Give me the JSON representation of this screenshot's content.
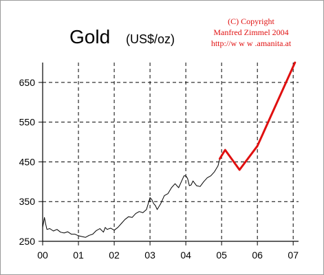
{
  "chart_data": {
    "type": "line",
    "title": "Gold",
    "subtitle": "(US$/oz)",
    "copyright": [
      "(C) Copyright",
      "Manfred Zimmel 2004",
      "http://w w w .amanita.at"
    ],
    "x_tick_labels": [
      "00",
      "01",
      "02",
      "03",
      "04",
      "05",
      "06",
      "07"
    ],
    "y_tick_labels": [
      "250",
      "350",
      "450",
      "550",
      "650"
    ],
    "y_ticks": [
      250,
      350,
      450,
      550,
      650
    ],
    "xlim": [
      0,
      7.15
    ],
    "ylim": [
      250,
      700
    ],
    "grid": true,
    "colors": {
      "history": "#000000",
      "forecast": "#e01010",
      "copyright": "#e01010",
      "grid": "#000000"
    },
    "series": [
      {
        "role": "history",
        "x": [
          0.0,
          0.05,
          0.08,
          0.12,
          0.2,
          0.3,
          0.4,
          0.5,
          0.6,
          0.7,
          0.8,
          0.9,
          1.0,
          1.1,
          1.2,
          1.3,
          1.4,
          1.5,
          1.6,
          1.7,
          1.75,
          1.8,
          1.9,
          2.0,
          2.1,
          2.2,
          2.3,
          2.4,
          2.5,
          2.6,
          2.7,
          2.8,
          2.9,
          2.95,
          3.0,
          3.05,
          3.1,
          3.15,
          3.2,
          3.3,
          3.4,
          3.5,
          3.6,
          3.7,
          3.8,
          3.9,
          3.95,
          4.0,
          4.05,
          4.1,
          4.15,
          4.2,
          4.3,
          4.4,
          4.5,
          4.6,
          4.7,
          4.8,
          4.9,
          4.95
        ],
        "y": [
          285,
          310,
          295,
          280,
          282,
          276,
          280,
          273,
          271,
          274,
          268,
          268,
          264,
          262,
          260,
          265,
          268,
          277,
          282,
          273,
          285,
          280,
          283,
          278,
          285,
          295,
          305,
          312,
          310,
          320,
          325,
          322,
          330,
          345,
          360,
          355,
          345,
          340,
          330,
          345,
          365,
          370,
          385,
          395,
          385,
          405,
          415,
          415,
          408,
          390,
          392,
          402,
          390,
          388,
          400,
          410,
          415,
          425,
          440,
          458
        ]
      },
      {
        "role": "forecast",
        "x": [
          4.95,
          5.1,
          5.5,
          6.0,
          7.05
        ],
        "y": [
          458,
          480,
          430,
          490,
          700
        ]
      }
    ]
  }
}
